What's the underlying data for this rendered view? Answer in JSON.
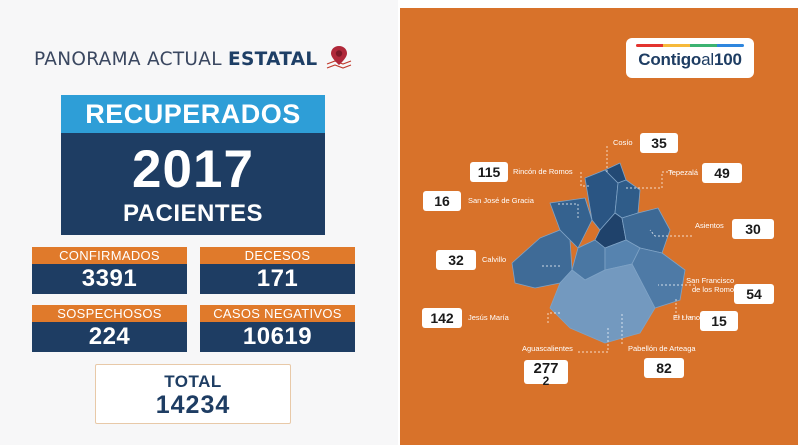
{
  "header": {
    "title_regular": "PANORAMA ACTUAL ",
    "title_bold": "ESTATAL"
  },
  "recuperados": {
    "label": "RECUPERADOS",
    "value": "2017",
    "unit": "PACIENTES"
  },
  "stats": {
    "confirmados": {
      "label": "CONFIRMADOS",
      "value": "3391"
    },
    "decesos": {
      "label": "DECESOS",
      "value": "171"
    },
    "sospechosos": {
      "label": "SOSPECHOSOS",
      "value": "224"
    },
    "casos_negativos": {
      "label": "CASOS NEGATIVOS",
      "value": "10619"
    }
  },
  "total": {
    "label": "TOTAL",
    "value": "14234"
  },
  "logo": {
    "main": "Contigo",
    "sub": "al",
    "num": "100"
  },
  "municipios": {
    "cosio": {
      "name": "Cosío",
      "value": "35"
    },
    "rincon_de_romos": {
      "name": "Rincón de Romos",
      "value": "115"
    },
    "tepezala": {
      "name": "Tepezalá",
      "value": "49"
    },
    "san_jose_de_gracia": {
      "name": "San José de Gracia",
      "value": "16"
    },
    "asientos": {
      "name": "Asientos",
      "value": "30"
    },
    "calvillo": {
      "name": "Calvillo",
      "value": "32"
    },
    "san_francisco_de_los_romo": {
      "name_line1": "San Francisco",
      "name_line2": "de los Romo",
      "value": "54"
    },
    "jesus_maria": {
      "name": "Jesús María",
      "value": "142"
    },
    "el_llano": {
      "name": "El Llano",
      "value": "15"
    },
    "aguascalientes": {
      "name": "Aguascalientes",
      "value": "277",
      "value_extra": "2"
    },
    "pabellon_de_arteaga": {
      "name": "Pabellón de Arteaga",
      "value": "82"
    }
  },
  "colors": {
    "orange": "#d8722a",
    "navy": "#1e3d63",
    "blue": "#2e9ed7",
    "label_orange": "#e07a2b"
  }
}
